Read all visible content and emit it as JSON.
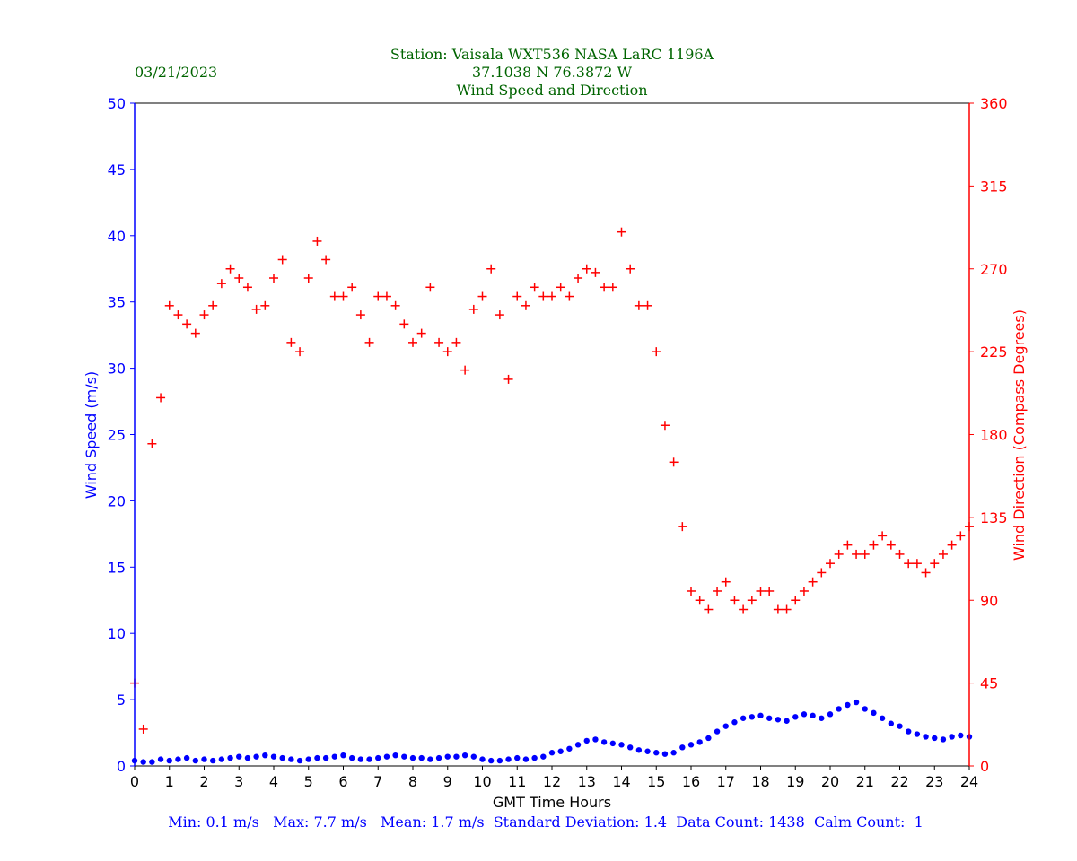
{
  "header": {
    "date": "03/21/2023",
    "title_line1": "Station:  Vaisala WXT536  NASA LaRC 1196A",
    "title_line2": "37.1038 N 76.3872 W",
    "title_line3": "Wind Speed and Direction"
  },
  "footer": {
    "stats": "Min: 0.1 m/s   Max: 7.7 m/s   Mean: 1.7 m/s  Standard Deviation: 1.4  Data Count: 1438  Calm Count:  1"
  },
  "colors": {
    "title": "#006400",
    "speed": "#0000ff",
    "direction": "#ff0000",
    "axis": "#000000"
  },
  "chart_data": {
    "type": "scatter",
    "xlabel": "GMT Time Hours",
    "ylabel_left": "Wind Speed (m/s)",
    "ylabel_right": "Wind Direction (Compass Degrees)",
    "xlim": [
      0,
      24
    ],
    "ylim_left": [
      0,
      50
    ],
    "ylim_right": [
      0,
      360
    ],
    "x_ticks": [
      0,
      1,
      2,
      3,
      4,
      5,
      6,
      7,
      8,
      9,
      10,
      11,
      12,
      13,
      14,
      15,
      16,
      17,
      18,
      19,
      20,
      21,
      22,
      23,
      24
    ],
    "y_ticks_left": [
      0,
      5,
      10,
      15,
      20,
      25,
      30,
      35,
      40,
      45,
      50
    ],
    "y_ticks_right": [
      0,
      45,
      90,
      135,
      180,
      225,
      270,
      315,
      360
    ],
    "grid": false,
    "series": [
      {
        "name": "Wind Speed (m/s)",
        "axis": "left",
        "marker": "dot",
        "color": "#0000ff",
        "x": [
          0.0,
          0.25,
          0.5,
          0.75,
          1.0,
          1.25,
          1.5,
          1.75,
          2.0,
          2.25,
          2.5,
          2.75,
          3.0,
          3.25,
          3.5,
          3.75,
          4.0,
          4.25,
          4.5,
          4.75,
          5.0,
          5.25,
          5.5,
          5.75,
          6.0,
          6.25,
          6.5,
          6.75,
          7.0,
          7.25,
          7.5,
          7.75,
          8.0,
          8.25,
          8.5,
          8.75,
          9.0,
          9.25,
          9.5,
          9.75,
          10.0,
          10.25,
          10.5,
          10.75,
          11.0,
          11.25,
          11.5,
          11.75,
          12.0,
          12.25,
          12.5,
          12.75,
          13.0,
          13.25,
          13.5,
          13.75,
          14.0,
          14.25,
          14.5,
          14.75,
          15.0,
          15.25,
          15.5,
          15.75,
          16.0,
          16.25,
          16.5,
          16.75,
          17.0,
          17.25,
          17.5,
          17.75,
          18.0,
          18.25,
          18.5,
          18.75,
          19.0,
          19.25,
          19.5,
          19.75,
          20.0,
          20.25,
          20.5,
          20.75,
          21.0,
          21.25,
          21.5,
          21.75,
          22.0,
          22.25,
          22.5,
          22.75,
          23.0,
          23.25,
          23.5,
          23.75,
          24.0
        ],
        "values": [
          0.4,
          0.3,
          0.3,
          0.5,
          0.4,
          0.5,
          0.6,
          0.4,
          0.5,
          0.4,
          0.5,
          0.6,
          0.7,
          0.6,
          0.7,
          0.8,
          0.7,
          0.6,
          0.5,
          0.4,
          0.5,
          0.6,
          0.6,
          0.7,
          0.8,
          0.6,
          0.5,
          0.5,
          0.6,
          0.7,
          0.8,
          0.7,
          0.6,
          0.6,
          0.5,
          0.6,
          0.7,
          0.7,
          0.8,
          0.7,
          0.5,
          0.4,
          0.4,
          0.5,
          0.6,
          0.5,
          0.6,
          0.7,
          1.0,
          1.1,
          1.3,
          1.6,
          1.9,
          2.0,
          1.8,
          1.7,
          1.6,
          1.4,
          1.2,
          1.1,
          1.0,
          0.9,
          1.0,
          1.4,
          1.6,
          1.8,
          2.1,
          2.6,
          3.0,
          3.3,
          3.6,
          3.7,
          3.8,
          3.6,
          3.5,
          3.4,
          3.7,
          3.9,
          3.8,
          3.6,
          3.9,
          4.3,
          4.6,
          4.8,
          4.3,
          4.0,
          3.6,
          3.2,
          3.0,
          2.6,
          2.4,
          2.2,
          2.1,
          2.0,
          2.2,
          2.3,
          2.2
        ]
      },
      {
        "name": "Wind Direction (Compass Degrees)",
        "axis": "right",
        "marker": "plus",
        "color": "#ff0000",
        "x": [
          0.0,
          0.25,
          0.5,
          0.75,
          1.0,
          1.25,
          1.5,
          1.75,
          2.0,
          2.25,
          2.5,
          2.75,
          3.0,
          3.25,
          3.5,
          3.75,
          4.0,
          4.25,
          4.5,
          4.75,
          5.0,
          5.25,
          5.5,
          5.75,
          6.0,
          6.25,
          6.5,
          6.75,
          7.0,
          7.25,
          7.5,
          7.75,
          8.0,
          8.25,
          8.5,
          8.75,
          9.0,
          9.25,
          9.5,
          9.75,
          10.0,
          10.25,
          10.5,
          10.75,
          11.0,
          11.25,
          11.5,
          11.75,
          12.0,
          12.25,
          12.5,
          12.75,
          13.0,
          13.25,
          13.5,
          13.75,
          14.0,
          14.25,
          14.5,
          14.75,
          15.0,
          15.25,
          15.5,
          15.75,
          16.0,
          16.25,
          16.5,
          16.75,
          17.0,
          17.25,
          17.5,
          17.75,
          18.0,
          18.25,
          18.5,
          18.75,
          19.0,
          19.25,
          19.5,
          19.75,
          20.0,
          20.25,
          20.5,
          20.75,
          21.0,
          21.25,
          21.5,
          21.75,
          22.0,
          22.25,
          22.5,
          22.75,
          23.0,
          23.25,
          23.5,
          23.75,
          24.0
        ],
        "values": [
          45,
          20,
          175,
          200,
          250,
          245,
          240,
          235,
          245,
          250,
          262,
          270,
          265,
          260,
          248,
          250,
          265,
          275,
          230,
          225,
          265,
          285,
          275,
          255,
          255,
          260,
          245,
          230,
          255,
          255,
          250,
          240,
          230,
          235,
          260,
          230,
          225,
          230,
          215,
          248,
          255,
          270,
          245,
          210,
          255,
          250,
          260,
          255,
          255,
          260,
          255,
          265,
          270,
          268,
          260,
          260,
          290,
          270,
          250,
          250,
          225,
          185,
          165,
          130,
          95,
          90,
          85,
          95,
          100,
          90,
          85,
          90,
          95,
          95,
          85,
          85,
          90,
          95,
          100,
          105,
          110,
          115,
          120,
          115,
          115,
          120,
          125,
          120,
          115,
          110,
          110,
          105,
          110,
          115,
          120,
          125,
          130
        ]
      }
    ]
  }
}
